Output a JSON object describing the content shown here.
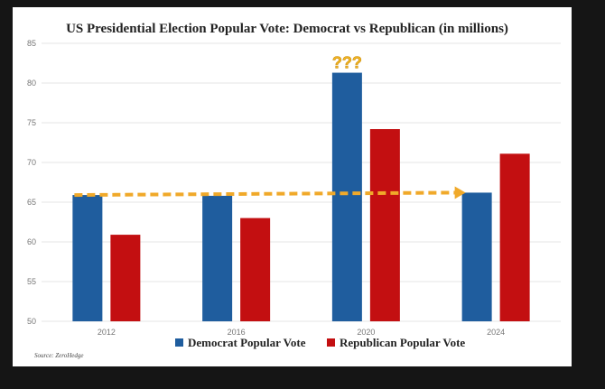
{
  "source": "Source: ZeroHedge",
  "annotation": "???",
  "colors": {
    "democrat": "#1f5d9e",
    "republican": "#c30f11",
    "arrow": "#f0a92a",
    "grid": "#e6e6e6"
  },
  "chart_data": {
    "type": "bar",
    "title": "US Presidential Election Popular Vote: Democrat vs Republican (in millions)",
    "categories": [
      "2012",
      "2016",
      "2020",
      "2024"
    ],
    "series": [
      {
        "name": "Democrat Popular Vote",
        "values": [
          65.9,
          65.8,
          81.3,
          66.2
        ]
      },
      {
        "name": "Republican Popular Vote",
        "values": [
          60.9,
          63.0,
          74.2,
          71.1
        ]
      }
    ],
    "ylim": [
      50,
      85
    ],
    "yticks": [
      50,
      55,
      60,
      65,
      70,
      75,
      80,
      85
    ],
    "grid": true,
    "legend": "bottom",
    "xlabel": "",
    "ylabel": ""
  }
}
